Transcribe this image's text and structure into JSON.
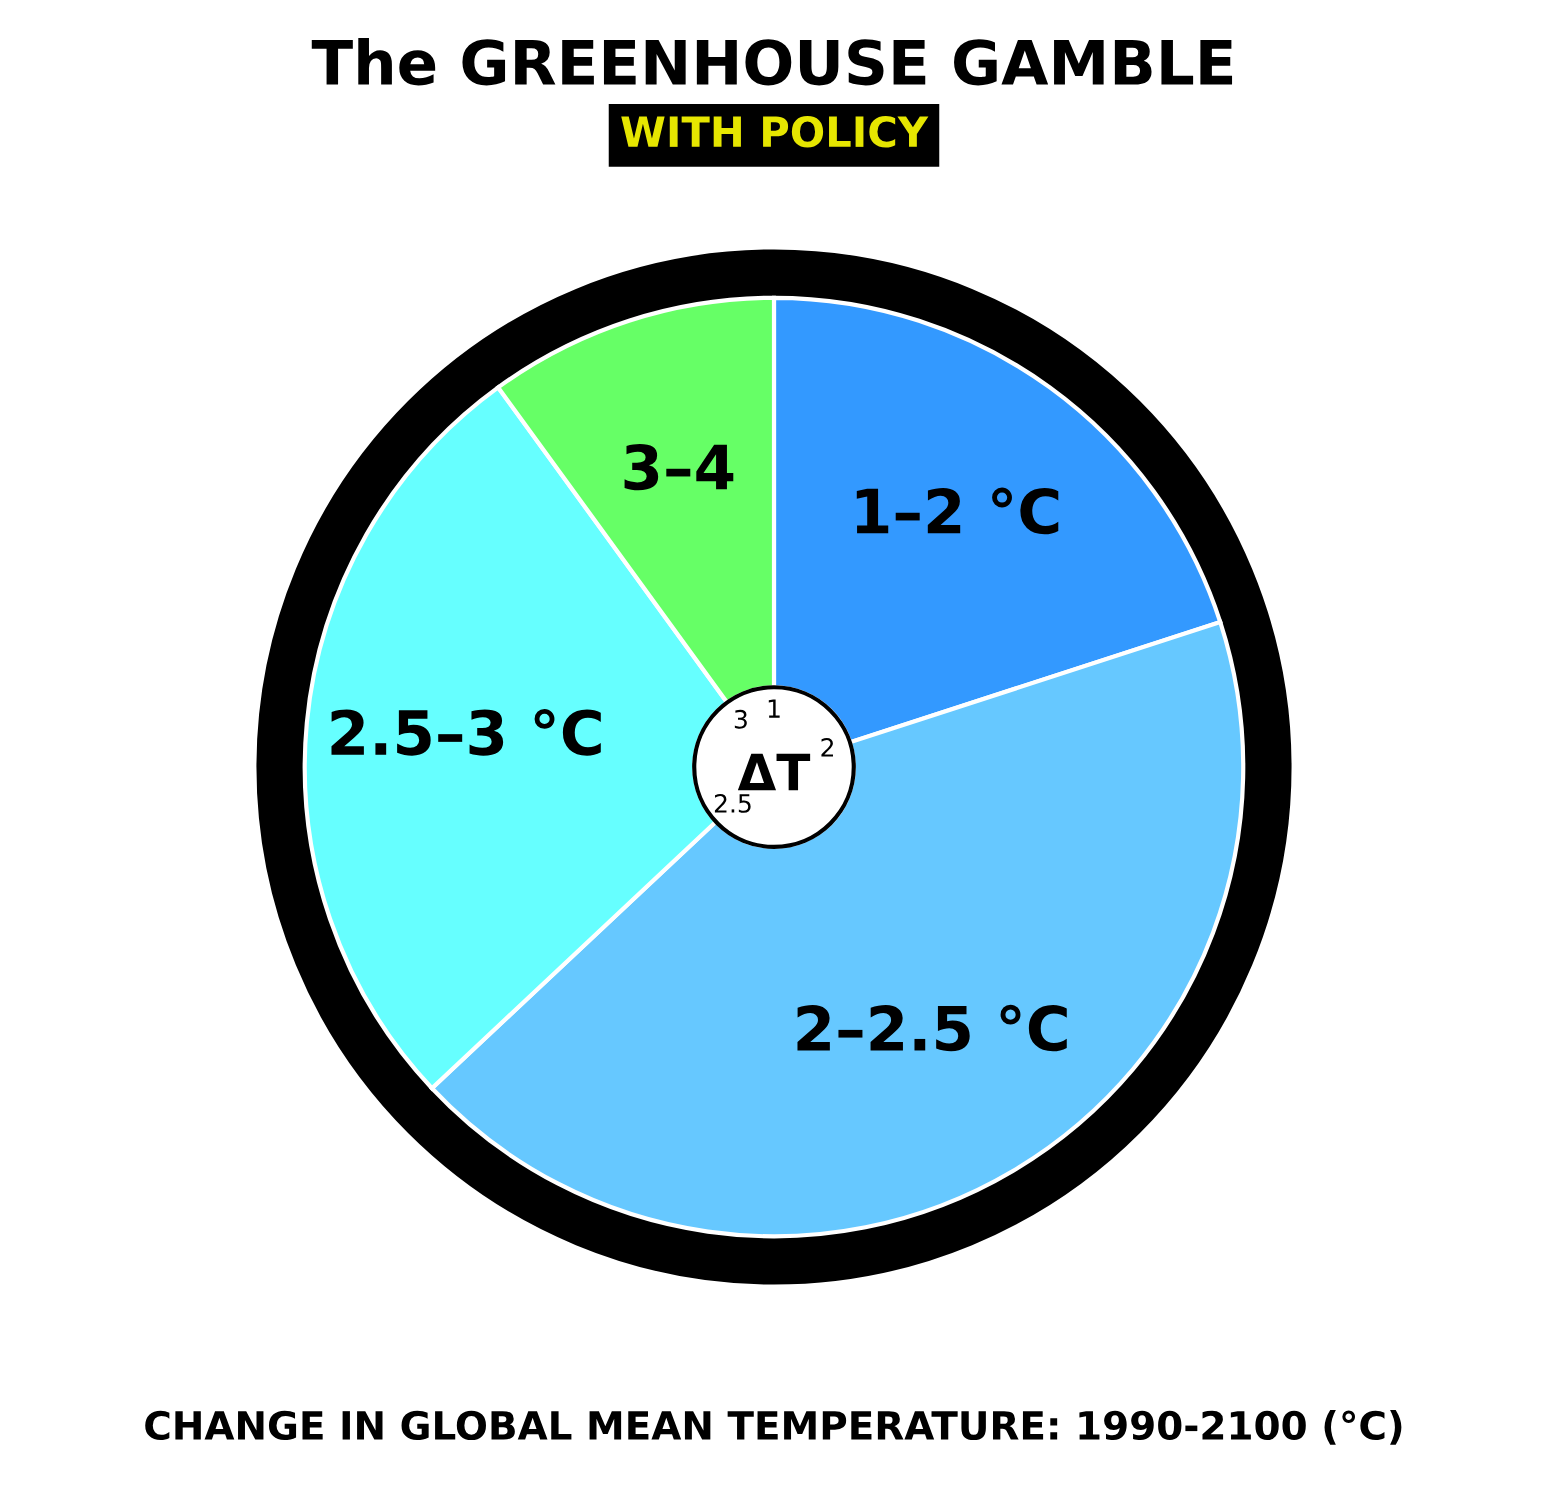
{
  "chart_data": {
    "type": "donut",
    "title": "The GREENHOUSE GAMBLE",
    "subtitle": "WITH POLICY",
    "categories": [
      "1–2 °C",
      "2–2.5 °C",
      "2.5–3 °C",
      "3–4"
    ],
    "values": [
      20,
      43,
      27,
      10
    ],
    "colors": [
      "#3399ff",
      "#66c8ff",
      "#66ffff",
      "#66ff66"
    ],
    "annotations": [
      "CHANGE IN GLOBAL MEAN TEMPERATURE: 1990-2100 (°C)",
      "ΔT",
      "1",
      "2",
      "2.5",
      "3"
    ]
  }
}
